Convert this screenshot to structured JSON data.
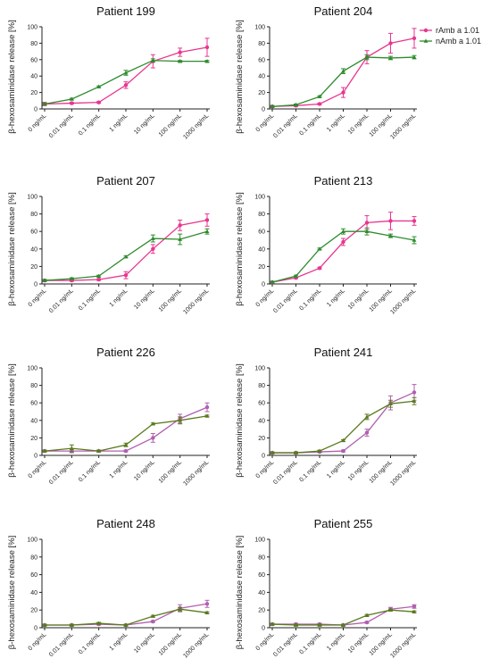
{
  "chart_data": {
    "type": "line",
    "ylabel": "β-hexosaminidase release [%]",
    "categories": [
      "0 ng/mL",
      "0.01 ng/mL",
      "0.1 ng/mL",
      "1 ng/mL",
      "10 ng/mL",
      "100 ng/mL",
      "1000 ng/mL"
    ],
    "ylim": [
      0,
      100
    ],
    "yticks": [
      0,
      20,
      40,
      60,
      80,
      100
    ],
    "legend": {
      "position": "top-right",
      "entries": [
        {
          "name": "rAmb a 1.01",
          "color": "#e8368f",
          "marker": "circle"
        },
        {
          "name": "nAmb a 1.01",
          "color": "#2e8b2e",
          "marker": "triangle"
        }
      ]
    },
    "panels": [
      {
        "title": "Patient 199",
        "series": [
          {
            "name": "rAmb a 1.01",
            "color": "#e8368f",
            "values": [
              6,
              7,
              8,
              29,
              58,
              69,
              75
            ],
            "errors": [
              2,
              1,
              1,
              4,
              8,
              5,
              11
            ]
          },
          {
            "name": "nAmb a 1.01",
            "color": "#2e8b2e",
            "values": [
              6,
              12,
              27,
              44,
              59,
              58,
              58
            ],
            "errors": [
              1,
              1,
              1,
              3,
              2,
              1,
              1
            ]
          }
        ]
      },
      {
        "title": "Patient 204",
        "series": [
          {
            "name": "rAmb a 1.01",
            "color": "#e8368f",
            "values": [
              3,
              4,
              6,
              20,
              63,
              80,
              86
            ],
            "errors": [
              1,
              1,
              1,
              6,
              8,
              12,
              12
            ]
          },
          {
            "name": "nAmb a 1.01",
            "color": "#2e8b2e",
            "values": [
              3,
              5,
              15,
              46,
              63,
              62,
              63
            ],
            "errors": [
              1,
              1,
              1,
              3,
              3,
              2,
              2
            ]
          }
        ]
      },
      {
        "title": "Patient 207",
        "series": [
          {
            "name": "rAmb a 1.01",
            "color": "#e8368f",
            "values": [
              4,
              4,
              5,
              10,
              40,
              67,
              73
            ],
            "errors": [
              1,
              1,
              1,
              4,
              5,
              6,
              7
            ]
          },
          {
            "name": "nAmb a 1.01",
            "color": "#2e8b2e",
            "values": [
              4,
              6,
              9,
              31,
              52,
              51,
              60
            ],
            "errors": [
              1,
              1,
              1,
              1,
              4,
              6,
              3
            ]
          }
        ]
      },
      {
        "title": "Patient 213",
        "series": [
          {
            "name": "rAmb a 1.01",
            "color": "#e8368f",
            "values": [
              2,
              7,
              18,
              48,
              70,
              72,
              72
            ],
            "errors": [
              1,
              1,
              1,
              4,
              8,
              10,
              5
            ]
          },
          {
            "name": "nAmb a 1.01",
            "color": "#2e8b2e",
            "values": [
              2,
              9,
              40,
              60,
              60,
              55,
              50
            ],
            "errors": [
              1,
              1,
              1,
              3,
              4,
              2,
              4
            ]
          }
        ]
      },
      {
        "title": "Patient 226",
        "series": [
          {
            "name": "rAmb a 1.01",
            "color": "#b060b0",
            "values": [
              5,
              5,
              5,
              5,
              20,
              42,
              55
            ],
            "errors": [
              1,
              2,
              1,
              1,
              5,
              5,
              5
            ]
          },
          {
            "name": "nAmb a 1.01",
            "color": "#5a7a1e",
            "values": [
              5,
              8,
              5,
              12,
              36,
              40,
              45
            ],
            "errors": [
              1,
              4,
              1,
              2,
              1,
              4,
              1
            ]
          }
        ]
      },
      {
        "title": "Patient 241",
        "series": [
          {
            "name": "rAmb a 1.01",
            "color": "#b060b0",
            "values": [
              3,
              3,
              4,
              5,
              26,
              60,
              72
            ],
            "errors": [
              1,
              1,
              1,
              1,
              4,
              8,
              9
            ]
          },
          {
            "name": "nAmb a 1.01",
            "color": "#5a7a1e",
            "values": [
              3,
              3,
              5,
              17,
              44,
              59,
              62
            ],
            "errors": [
              1,
              1,
              1,
              1,
              3,
              4,
              4
            ]
          }
        ]
      },
      {
        "title": "Patient 248",
        "series": [
          {
            "name": "rAmb a 1.01",
            "color": "#b060b0",
            "values": [
              3,
              3,
              4,
              3,
              7,
              22,
              27
            ],
            "errors": [
              1,
              1,
              1,
              1,
              1,
              4,
              4
            ]
          },
          {
            "name": "nAmb a 1.01",
            "color": "#5a7a1e",
            "values": [
              3,
              3,
              5,
              3,
              13,
              21,
              17
            ],
            "errors": [
              1,
              1,
              1,
              1,
              1,
              2,
              1
            ]
          }
        ]
      },
      {
        "title": "Patient 255",
        "series": [
          {
            "name": "rAmb a 1.01",
            "color": "#b060b0",
            "values": [
              4,
              4,
              4,
              3,
              6,
              21,
              24
            ],
            "errors": [
              1,
              1,
              1,
              1,
              1,
              2,
              2
            ]
          },
          {
            "name": "nAmb a 1.01",
            "color": "#5a7a1e",
            "values": [
              4,
              3,
              3,
              3,
              14,
              20,
              18
            ],
            "errors": [
              1,
              1,
              1,
              1,
              1,
              1,
              1
            ]
          }
        ]
      }
    ]
  }
}
